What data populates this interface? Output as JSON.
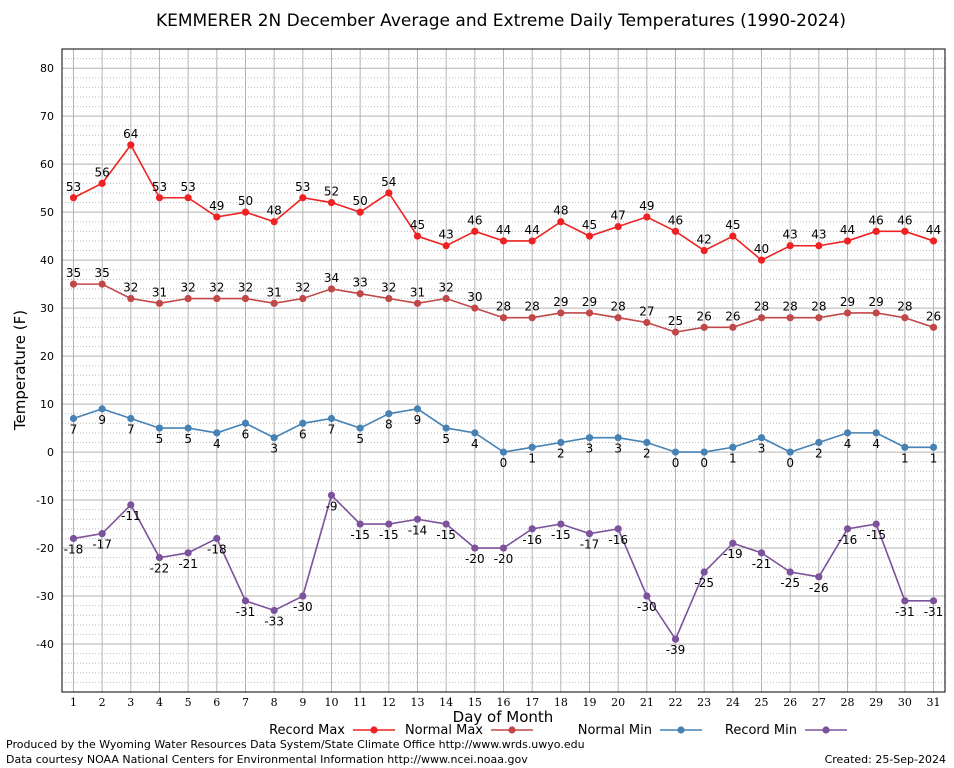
{
  "chart_data": {
    "type": "line",
    "title": "KEMMERER 2N December Average and Extreme Daily Temperatures (1990-2024)",
    "xlabel": "Day of Month",
    "ylabel": "Temperature (F)",
    "xlim": [
      0.6,
      31.4
    ],
    "ylim": [
      -50,
      84
    ],
    "y_ticks": [
      80,
      70,
      60,
      50,
      40,
      30,
      20,
      10,
      0,
      -10,
      -20,
      -30,
      -40
    ],
    "x": [
      1,
      2,
      3,
      4,
      5,
      6,
      7,
      8,
      9,
      10,
      11,
      12,
      13,
      14,
      15,
      16,
      17,
      18,
      19,
      20,
      21,
      22,
      23,
      24,
      25,
      26,
      27,
      28,
      29,
      30,
      31
    ],
    "grid": true,
    "legend_position": "bottom",
    "series": [
      {
        "name": "Record Max",
        "color": "#ee2222",
        "label_side": "above",
        "values": [
          53,
          56,
          64,
          53,
          53,
          49,
          50,
          48,
          53,
          52,
          50,
          54,
          45,
          43,
          46,
          44,
          44,
          48,
          45,
          47,
          49,
          46,
          42,
          45,
          40,
          43,
          43,
          44,
          46,
          46,
          44
        ]
      },
      {
        "name": "Normal Max",
        "color": "#c04848",
        "label_side": "above",
        "values": [
          35,
          35,
          32,
          31,
          32,
          32,
          32,
          31,
          32,
          34,
          33,
          32,
          31,
          32,
          30,
          28,
          28,
          29,
          29,
          28,
          27,
          25,
          26,
          26,
          28,
          28,
          28,
          29,
          29,
          28,
          26
        ]
      },
      {
        "name": "Normal Min",
        "color": "#4682b4",
        "label_side": "below",
        "values": [
          7,
          9,
          7,
          5,
          5,
          4,
          6,
          3,
          6,
          7,
          5,
          8,
          9,
          5,
          4,
          0,
          1,
          2,
          3,
          3,
          2,
          0,
          0,
          1,
          3,
          0,
          2,
          4,
          4,
          1,
          1
        ]
      },
      {
        "name": "Record Min",
        "color": "#7b529b",
        "label_side": "below",
        "values": [
          -18,
          -17,
          -11,
          -22,
          -21,
          -18,
          -31,
          -33,
          -30,
          -9,
          -15,
          -15,
          -14,
          -15,
          -20,
          -20,
          -16,
          -15,
          -17,
          -16,
          -30,
          -39,
          -25,
          -19,
          -21,
          -25,
          -26,
          -16,
          -15,
          -31,
          -31
        ]
      }
    ]
  },
  "footer": {
    "produced_by": "Produced by the Wyoming Water Resources Data System/State Climate Office http://www.wrds.uwyo.edu",
    "courtesy": "Data courtesy NOAA National Centers for Environmental Information http://www.ncei.noaa.gov",
    "created": "Created:  25-Sep-2024"
  }
}
